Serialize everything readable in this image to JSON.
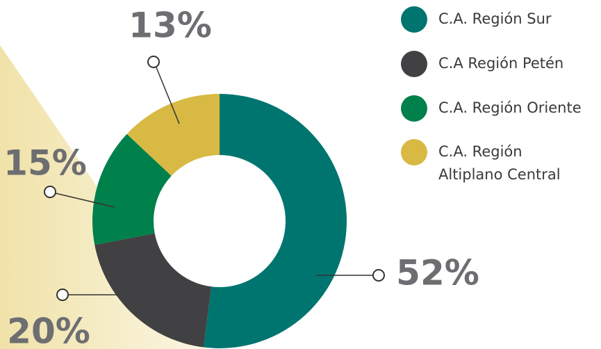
{
  "chart_data": {
    "type": "donut",
    "categories": [
      "C.A. Región Sur",
      "C.A Región Petén",
      "C.A. Región Oriente",
      "C.A. Región Altiplano Central"
    ],
    "values": [
      52,
      20,
      15,
      13
    ],
    "value_labels": [
      "52%",
      "20%",
      "15%",
      "13%"
    ],
    "colors": [
      "#00756f",
      "#414042",
      "#00804a",
      "#d8b943"
    ]
  }
}
